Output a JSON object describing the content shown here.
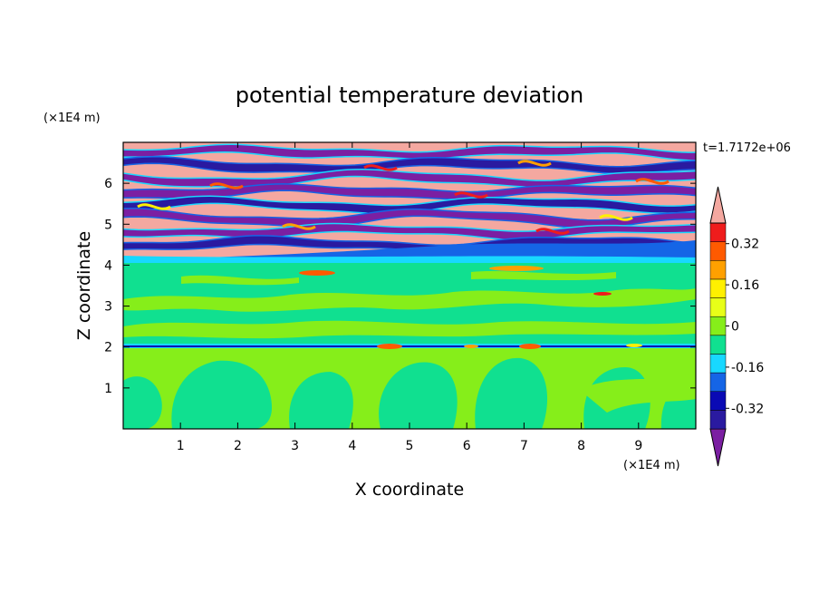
{
  "chart_data": {
    "type": "heatmap",
    "title": "potential temperature deviation",
    "xlabel": "X coordinate",
    "ylabel": "Z coordinate",
    "x_units": "(×1E4 m)",
    "y_units": "(×1E4 m)",
    "time_label": "t=1.7172e+06",
    "xlim": [
      0,
      10
    ],
    "ylim": [
      0,
      7
    ],
    "x_ticks": [
      "1",
      "2",
      "3",
      "4",
      "5",
      "6",
      "7",
      "8",
      "9"
    ],
    "y_ticks": [
      "1",
      "2",
      "3",
      "4",
      "5",
      "6"
    ],
    "colorbar": {
      "levels": [
        -0.48,
        -0.4,
        -0.32,
        -0.24,
        -0.16,
        -0.08,
        0,
        0.08,
        0.16,
        0.24,
        0.32,
        0.4,
        0.48
      ],
      "colors": [
        "#7b1fa2",
        "#2a1aa0",
        "#0a0ab4",
        "#1565e6",
        "#18d8ff",
        "#10e090",
        "#86ee1a",
        "#e8ff18",
        "#fff000",
        "#ffa000",
        "#ff5a00",
        "#ef1c1c",
        "#f4a8a0"
      ],
      "tick_labels": [
        "0.32",
        "0.16",
        "0",
        "-0.16",
        "-0.32"
      ]
    }
  }
}
